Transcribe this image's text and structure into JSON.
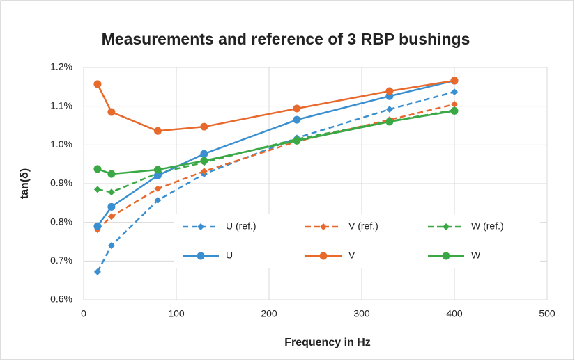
{
  "chart_data": {
    "type": "line",
    "title": "Measurements and reference of 3 RBP bushings",
    "xlabel": "Frequency in Hz",
    "ylabel": "tan(δ)",
    "x": [
      15,
      30,
      80,
      130,
      230,
      330,
      400
    ],
    "series": [
      {
        "name": "U (ref.)",
        "color": "#3a8fd0",
        "dashed": true,
        "marker": "diamond",
        "values": [
          0.672,
          0.74,
          0.857,
          0.925,
          1.018,
          1.092,
          1.137
        ]
      },
      {
        "name": "V (ref.)",
        "color": "#e8692c",
        "dashed": true,
        "marker": "diamond",
        "values": [
          0.781,
          0.815,
          0.887,
          0.932,
          1.009,
          1.065,
          1.105
        ]
      },
      {
        "name": "W (ref.)",
        "color": "#3aa845",
        "dashed": true,
        "marker": "diamond",
        "values": [
          0.885,
          0.878,
          0.927,
          0.955,
          1.015,
          1.061,
          1.09
        ]
      },
      {
        "name": "U",
        "color": "#3a8fd0",
        "dashed": false,
        "marker": "circle",
        "values": [
          0.79,
          0.84,
          0.921,
          0.977,
          1.065,
          1.126,
          1.166
        ]
      },
      {
        "name": "V",
        "color": "#e8692c",
        "dashed": false,
        "marker": "circle",
        "values": [
          1.157,
          1.085,
          1.036,
          1.047,
          1.094,
          1.139,
          1.166
        ]
      },
      {
        "name": "W",
        "color": "#3aa845",
        "dashed": false,
        "marker": "circle",
        "values": [
          0.938,
          0.925,
          0.936,
          0.959,
          1.011,
          1.06,
          1.088
        ]
      }
    ],
    "xlim": [
      0,
      500
    ],
    "xticks": [
      0,
      100,
      200,
      300,
      400,
      500
    ],
    "ylim": [
      0.6,
      1.2
    ],
    "yticks": [
      {
        "value": 0.6,
        "label": "0.6%"
      },
      {
        "value": 0.7,
        "label": "0.7%"
      },
      {
        "value": 0.8,
        "label": "0.8%"
      },
      {
        "value": 0.9,
        "label": "0.9%"
      },
      {
        "value": 1.0,
        "label": "1.0%"
      },
      {
        "value": 1.1,
        "label": "1.1%"
      },
      {
        "value": 1.2,
        "label": "1.2%"
      }
    ],
    "grid": true,
    "legend": "lower right"
  }
}
